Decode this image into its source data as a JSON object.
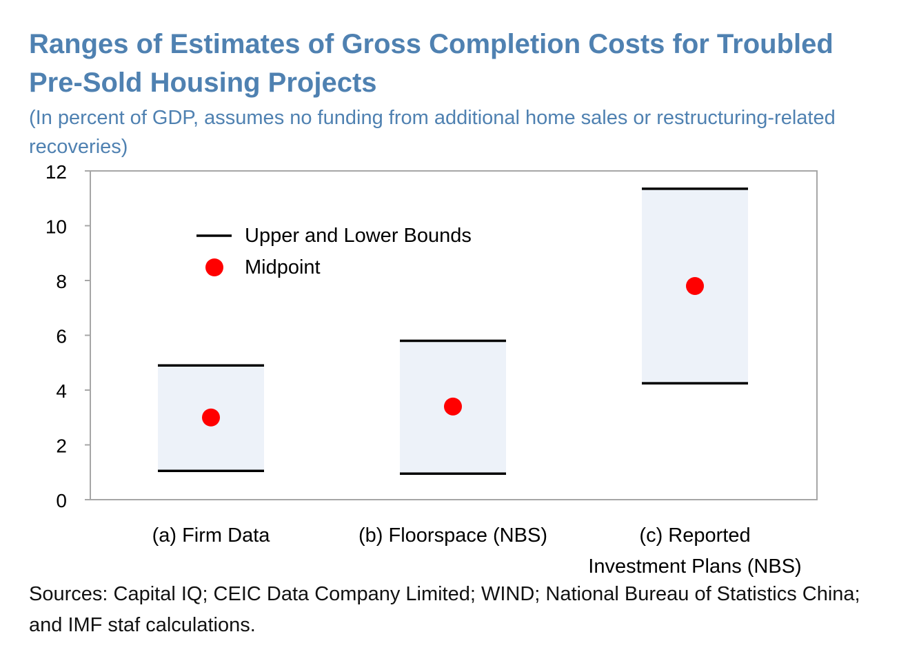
{
  "title": "Ranges of Estimates of Gross Completion Costs for Troubled Pre-Sold Housing Projects",
  "subtitle": "(In percent of GDP, assumes no funding from additional home sales or restructuring-related recoveries)",
  "sources": "Sources: Capital IQ; CEIC Data Company Limited; WIND; National Bureau of Statistics China; and IMF staf calculations.",
  "colors": {
    "title": "#4f81b1",
    "range_fill": "#edf2f9",
    "bound_line": "#000000",
    "midpoint": "#ff0000",
    "plot_border": "#a6a6a6"
  },
  "chart_data": {
    "type": "range",
    "title": "Ranges of Estimates of Gross Completion Costs for Troubled Pre-Sold Housing Projects",
    "ylabel": "In percent of GDP",
    "ylim": [
      0,
      12
    ],
    "yticks": [
      0,
      2,
      4,
      6,
      8,
      10,
      12
    ],
    "categories": [
      [
        "(a) Firm Data"
      ],
      [
        "(b) Floorspace (NBS)"
      ],
      [
        "(c) Reported",
        "Investment Plans (NBS)"
      ]
    ],
    "lower": [
      1.05,
      0.95,
      4.25
    ],
    "upper": [
      4.9,
      5.8,
      11.35
    ],
    "midpoint": [
      3.0,
      3.4,
      7.8
    ],
    "legend": {
      "position": "top-left",
      "bounds_label": "Upper and Lower Bounds",
      "midpoint_label": "Midpoint"
    }
  }
}
